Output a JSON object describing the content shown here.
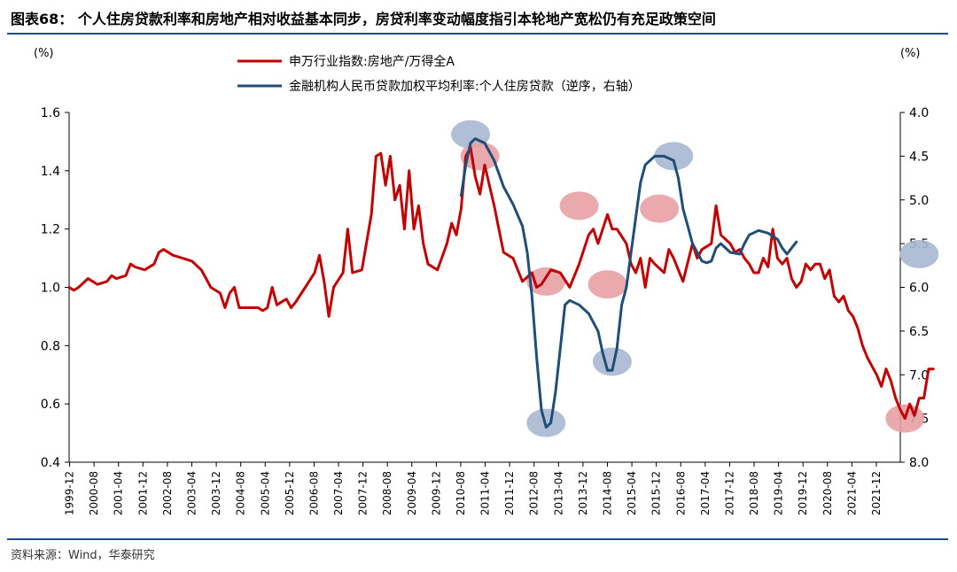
{
  "title": "图表68： 个人住房贷款利率和房地产相对收益基本同步，房贷利率变动幅度指引本轮地产宽松仍有充足政策空间",
  "source": "资料来源：Wind，华泰研究",
  "colors": {
    "red": "#c00000",
    "blue": "#1f4e79",
    "title_rule": "#1f4e8c"
  },
  "chart_data": {
    "type": "line",
    "left_unit": "(%)",
    "right_unit": "(%)",
    "left_ylim": [
      0.4,
      1.6
    ],
    "left_yticks": [
      "1.6",
      "1.4",
      "1.2",
      "1.0",
      "0.8",
      "0.6",
      "0.4"
    ],
    "right_ylim": [
      4.0,
      8.0
    ],
    "right_inverted": true,
    "right_yticks": [
      "4.0",
      "4.5",
      "5.0",
      "5.5",
      "6.0",
      "6.5",
      "7.0",
      "7.5",
      "8.0"
    ],
    "x_range": [
      0,
      88
    ],
    "xticks": [
      "1999-12",
      "2000-08",
      "2001-04",
      "2001-12",
      "2002-08",
      "2003-04",
      "2003-12",
      "2004-08",
      "2005-04",
      "2005-12",
      "2006-08",
      "2007-04",
      "2007-12",
      "2008-08",
      "2009-04",
      "2009-12",
      "2010-08",
      "2011-04",
      "2011-12",
      "2012-08",
      "2013-04",
      "2013-12",
      "2014-08",
      "2015-04",
      "2015-12",
      "2016-08",
      "2017-04",
      "2017-12",
      "2018-08",
      "2019-04",
      "2019-12",
      "2020-08",
      "2021-04",
      "2021-12"
    ],
    "series": [
      {
        "name": "申万行业指数:房地产/万得全A",
        "axis": "left",
        "color": "#c00000",
        "points": [
          [
            0,
            1.0
          ],
          [
            0.5,
            0.99
          ],
          [
            1,
            1.0
          ],
          [
            2,
            1.03
          ],
          [
            3,
            1.01
          ],
          [
            4,
            1.02
          ],
          [
            4.5,
            1.04
          ],
          [
            5,
            1.03
          ],
          [
            6,
            1.04
          ],
          [
            6.5,
            1.08
          ],
          [
            7,
            1.07
          ],
          [
            8,
            1.06
          ],
          [
            9,
            1.08
          ],
          [
            9.5,
            1.12
          ],
          [
            10,
            1.13
          ],
          [
            11,
            1.11
          ],
          [
            12,
            1.1
          ],
          [
            13,
            1.09
          ],
          [
            14,
            1.06
          ],
          [
            14.5,
            1.03
          ],
          [
            15,
            1.0
          ],
          [
            16,
            0.98
          ],
          [
            16.5,
            0.93
          ],
          [
            17,
            0.98
          ],
          [
            17.5,
            1.0
          ],
          [
            18,
            0.93
          ],
          [
            19,
            0.93
          ],
          [
            20,
            0.93
          ],
          [
            20.5,
            0.92
          ],
          [
            21,
            0.93
          ],
          [
            21.5,
            1.0
          ],
          [
            22,
            0.94
          ],
          [
            23,
            0.96
          ],
          [
            23.5,
            0.93
          ],
          [
            24,
            0.95
          ],
          [
            25,
            1.0
          ],
          [
            26,
            1.05
          ],
          [
            26.5,
            1.11
          ],
          [
            27,
            1.02
          ],
          [
            27.5,
            0.9
          ],
          [
            28,
            1.0
          ],
          [
            29,
            1.05
          ],
          [
            29.5,
            1.2
          ],
          [
            30,
            1.05
          ],
          [
            31,
            1.06
          ],
          [
            32,
            1.25
          ],
          [
            32.5,
            1.45
          ],
          [
            33,
            1.46
          ],
          [
            33.5,
            1.35
          ],
          [
            34,
            1.45
          ],
          [
            34.5,
            1.3
          ],
          [
            35,
            1.35
          ],
          [
            35.5,
            1.2
          ],
          [
            36,
            1.4
          ],
          [
            36.5,
            1.2
          ],
          [
            37,
            1.28
          ],
          [
            37.5,
            1.15
          ],
          [
            38,
            1.08
          ],
          [
            39,
            1.06
          ],
          [
            40,
            1.15
          ],
          [
            40.5,
            1.22
          ],
          [
            41,
            1.18
          ],
          [
            41.5,
            1.27
          ],
          [
            42,
            1.45
          ],
          [
            42.5,
            1.48
          ],
          [
            43,
            1.38
          ],
          [
            43.5,
            1.32
          ],
          [
            44,
            1.42
          ],
          [
            44.5,
            1.35
          ],
          [
            45,
            1.28
          ],
          [
            45.5,
            1.2
          ],
          [
            46,
            1.12
          ],
          [
            47,
            1.1
          ],
          [
            48,
            1.02
          ],
          [
            49,
            1.05
          ],
          [
            49.5,
            1.0
          ],
          [
            50,
            1.01
          ],
          [
            51,
            1.06
          ],
          [
            52,
            1.05
          ],
          [
            53,
            1.0
          ],
          [
            54,
            1.08
          ],
          [
            55,
            1.18
          ],
          [
            55.5,
            1.2
          ],
          [
            56,
            1.15
          ],
          [
            56.5,
            1.2
          ],
          [
            57,
            1.25
          ],
          [
            57.5,
            1.2
          ],
          [
            58,
            1.2
          ],
          [
            59,
            1.15
          ],
          [
            59.5,
            1.08
          ],
          [
            60,
            1.05
          ],
          [
            60.5,
            1.1
          ],
          [
            61,
            1.0
          ],
          [
            61.5,
            1.1
          ],
          [
            62,
            1.08
          ],
          [
            63,
            1.05
          ],
          [
            63.5,
            1.13
          ],
          [
            64,
            1.1
          ],
          [
            65,
            1.02
          ],
          [
            66,
            1.15
          ],
          [
            66.5,
            1.1
          ],
          [
            67,
            1.13
          ],
          [
            68,
            1.15
          ],
          [
            68.5,
            1.28
          ],
          [
            69,
            1.18
          ],
          [
            70,
            1.15
          ],
          [
            70.5,
            1.12
          ],
          [
            71,
            1.13
          ],
          [
            71.5,
            1.1
          ],
          [
            72,
            1.08
          ],
          [
            72.5,
            1.05
          ],
          [
            73,
            1.05
          ],
          [
            73.5,
            1.1
          ],
          [
            74,
            1.07
          ],
          [
            74.5,
            1.2
          ],
          [
            75,
            1.1
          ],
          [
            75.5,
            1.08
          ],
          [
            76,
            1.1
          ],
          [
            76.5,
            1.03
          ],
          [
            77,
            1.0
          ],
          [
            77.5,
            1.02
          ],
          [
            78,
            1.08
          ],
          [
            78.5,
            1.06
          ],
          [
            79,
            1.08
          ],
          [
            79.5,
            1.08
          ],
          [
            80,
            1.03
          ],
          [
            80.5,
            1.06
          ],
          [
            81,
            0.97
          ],
          [
            81.5,
            0.95
          ],
          [
            82,
            0.97
          ],
          [
            82.5,
            0.92
          ],
          [
            83,
            0.9
          ],
          [
            83.5,
            0.86
          ],
          [
            84,
            0.8
          ],
          [
            84.5,
            0.76
          ],
          [
            85,
            0.73
          ],
          [
            85.5,
            0.7
          ],
          [
            86,
            0.66
          ],
          [
            86.5,
            0.72
          ],
          [
            87,
            0.68
          ],
          [
            87.5,
            0.62
          ],
          [
            88,
            0.58
          ],
          [
            88.5,
            0.55
          ],
          [
            89,
            0.6
          ],
          [
            89.5,
            0.56
          ],
          [
            90,
            0.62
          ],
          [
            90.5,
            0.62
          ],
          [
            91,
            0.72
          ],
          [
            91.5,
            0.72
          ]
        ]
      },
      {
        "name": "金融机构人民币贷款加权平均利率:个人住房贷款（逆序，右轴）",
        "axis": "right",
        "color": "#1f4e79",
        "points": [
          [
            41.5,
            4.95
          ],
          [
            42,
            4.6
          ],
          [
            42.5,
            4.35
          ],
          [
            43,
            4.3
          ],
          [
            44,
            4.35
          ],
          [
            45,
            4.55
          ],
          [
            46,
            4.85
          ],
          [
            47,
            5.05
          ],
          [
            48,
            5.3
          ],
          [
            48.5,
            5.6
          ],
          [
            49,
            6.1
          ],
          [
            49.5,
            6.8
          ],
          [
            50,
            7.4
          ],
          [
            50.5,
            7.6
          ],
          [
            51,
            7.55
          ],
          [
            51.5,
            7.2
          ],
          [
            52,
            6.7
          ],
          [
            52.5,
            6.2
          ],
          [
            53,
            6.15
          ],
          [
            54,
            6.2
          ],
          [
            55,
            6.3
          ],
          [
            56,
            6.5
          ],
          [
            56.5,
            6.75
          ],
          [
            57,
            6.95
          ],
          [
            57.5,
            6.95
          ],
          [
            58,
            6.7
          ],
          [
            58.5,
            6.2
          ],
          [
            59,
            6.0
          ],
          [
            59.5,
            5.6
          ],
          [
            60,
            5.2
          ],
          [
            60.5,
            4.8
          ],
          [
            61,
            4.6
          ],
          [
            62,
            4.5
          ],
          [
            63,
            4.5
          ],
          [
            64,
            4.55
          ],
          [
            64.5,
            4.75
          ],
          [
            65,
            5.1
          ],
          [
            65.5,
            5.3
          ],
          [
            66,
            5.5
          ],
          [
            66.5,
            5.6
          ],
          [
            67,
            5.7
          ],
          [
            67.5,
            5.72
          ],
          [
            68,
            5.7
          ],
          [
            68.5,
            5.55
          ],
          [
            69,
            5.5
          ],
          [
            70,
            5.6
          ],
          [
            71,
            5.62
          ],
          [
            71.5,
            5.5
          ],
          [
            72,
            5.4
          ],
          [
            73,
            5.35
          ],
          [
            74,
            5.38
          ],
          [
            75,
            5.45
          ],
          [
            75.5,
            5.55
          ],
          [
            76,
            5.62
          ],
          [
            76.5,
            5.55
          ],
          [
            77,
            5.48
          ]
        ]
      }
    ],
    "markers": [
      {
        "x": 42.5,
        "y": 4.25,
        "axis": "right",
        "color": "blue"
      },
      {
        "x": 43.5,
        "y": 1.45,
        "axis": "left",
        "color": "red"
      },
      {
        "x": 50.5,
        "y": 1.02,
        "axis": "left",
        "color": "red"
      },
      {
        "x": 50.5,
        "y": 7.55,
        "axis": "right",
        "color": "blue"
      },
      {
        "x": 54,
        "y": 1.28,
        "axis": "left",
        "color": "red"
      },
      {
        "x": 57,
        "y": 1.01,
        "axis": "left",
        "color": "red"
      },
      {
        "x": 57.5,
        "y": 6.85,
        "axis": "right",
        "color": "blue"
      },
      {
        "x": 62.5,
        "y": 1.27,
        "axis": "left",
        "color": "red"
      },
      {
        "x": 64,
        "y": 4.5,
        "axis": "right",
        "color": "blue"
      },
      {
        "x": 88.5,
        "y": 0.55,
        "axis": "left",
        "color": "red"
      },
      {
        "x": 90,
        "y": 5.62,
        "axis": "right",
        "color": "blue"
      }
    ]
  }
}
